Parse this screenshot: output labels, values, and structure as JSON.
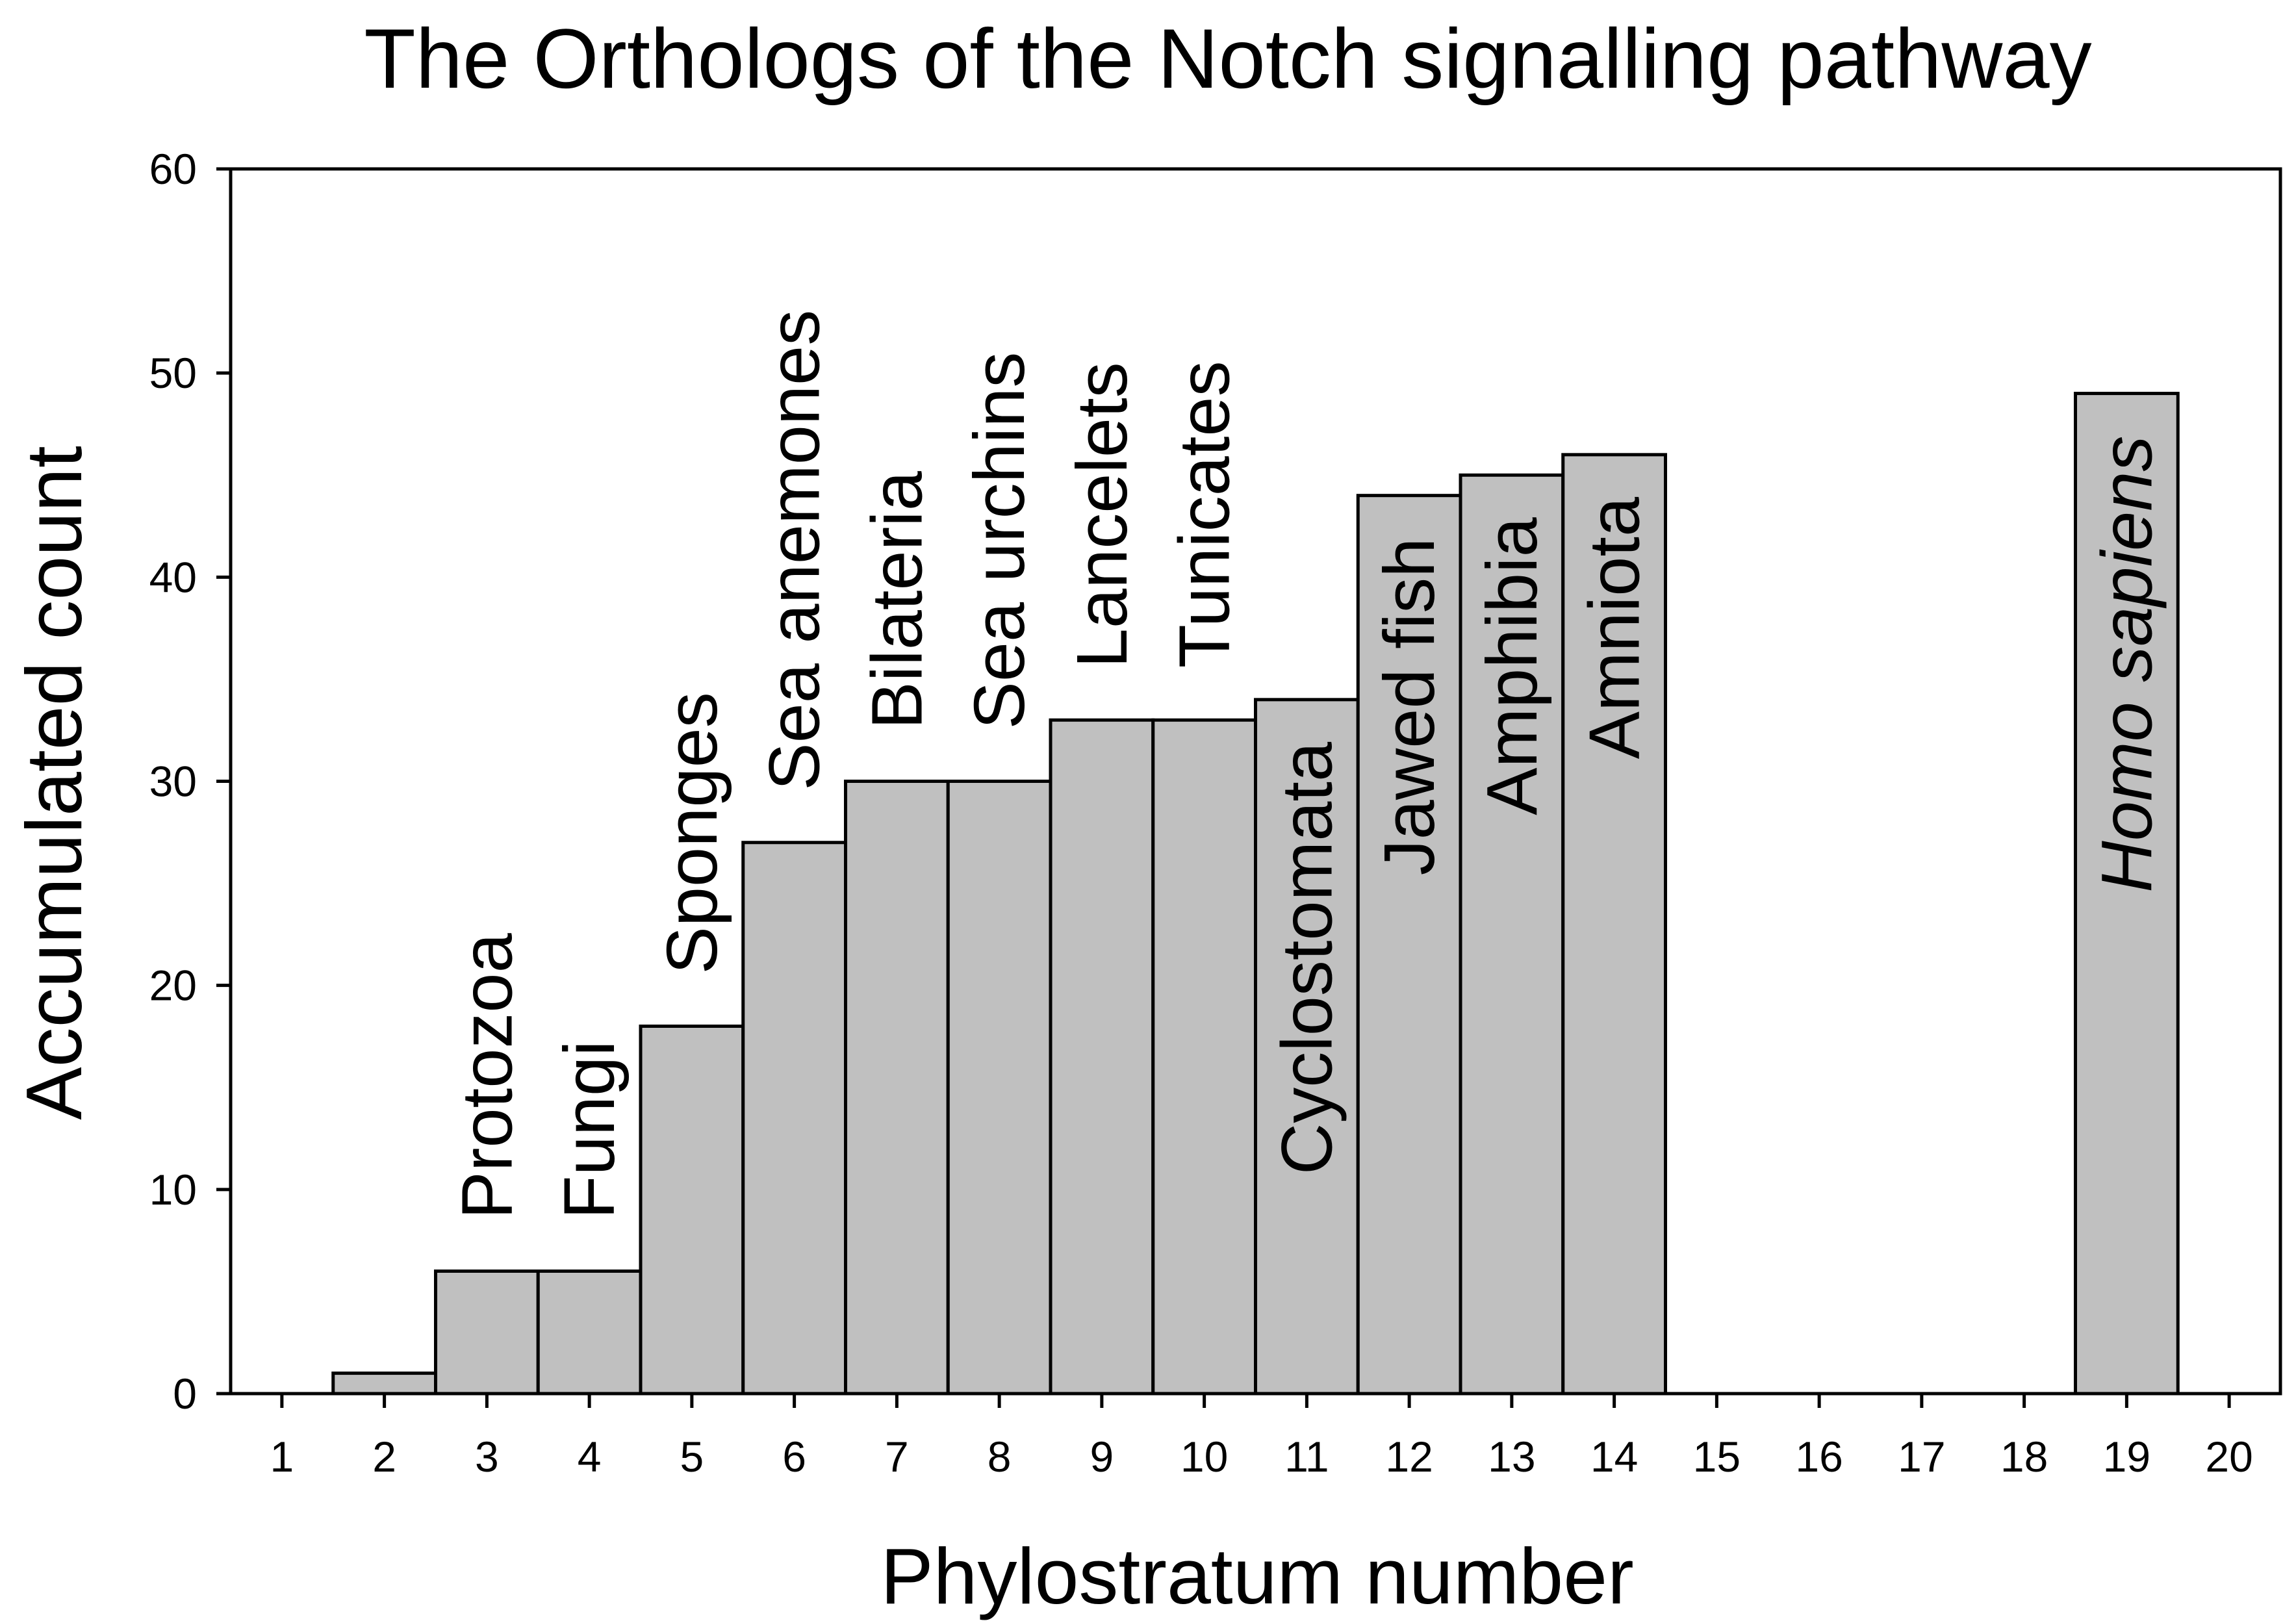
{
  "chart_data": {
    "type": "bar",
    "title": "The Orthologs of the Notch signalling pathway",
    "xlabel": "Phylostratum number",
    "ylabel": "Accumulated count",
    "ylim": [
      0,
      60
    ],
    "xlim": [
      0.5,
      20.5
    ],
    "yticks": [
      "0",
      "10",
      "20",
      "30",
      "40",
      "50",
      "60"
    ],
    "categories": [
      "1",
      "2",
      "3",
      "4",
      "5",
      "6",
      "7",
      "8",
      "9",
      "10",
      "11",
      "12",
      "13",
      "14",
      "15",
      "16",
      "17",
      "18",
      "19",
      "20"
    ],
    "values": [
      0,
      1,
      6,
      6,
      18,
      27,
      30,
      30,
      33,
      33,
      34,
      44,
      45,
      46,
      0,
      0,
      0,
      0,
      49,
      0
    ],
    "bar_color": "#c0c0c0",
    "grid": false,
    "annotations": [
      {
        "x": 3,
        "text": "Protozoa",
        "placement": "above",
        "italic": false
      },
      {
        "x": 4,
        "text": "Fungi",
        "placement": "above",
        "italic": false
      },
      {
        "x": 5,
        "text": "Sponges",
        "placement": "above",
        "italic": false
      },
      {
        "x": 6,
        "text": "Sea anemones",
        "placement": "above",
        "italic": false
      },
      {
        "x": 7,
        "text": "Bilateria",
        "placement": "above",
        "italic": false
      },
      {
        "x": 8,
        "text": "Sea urchins",
        "placement": "above",
        "italic": false
      },
      {
        "x": 9,
        "text": "Lancelets",
        "placement": "above",
        "italic": false
      },
      {
        "x": 10,
        "text": "Tunicates",
        "placement": "above",
        "italic": false
      },
      {
        "x": 11,
        "text": "Cyclostomata",
        "placement": "inside",
        "italic": false
      },
      {
        "x": 12,
        "text": "Jawed fish",
        "placement": "inside",
        "italic": false
      },
      {
        "x": 13,
        "text": "Amphibia",
        "placement": "inside",
        "italic": false
      },
      {
        "x": 14,
        "text": "Amniota",
        "placement": "inside",
        "italic": false
      },
      {
        "x": 19,
        "text": "Homo sapiens",
        "placement": "inside",
        "italic": true
      }
    ]
  }
}
